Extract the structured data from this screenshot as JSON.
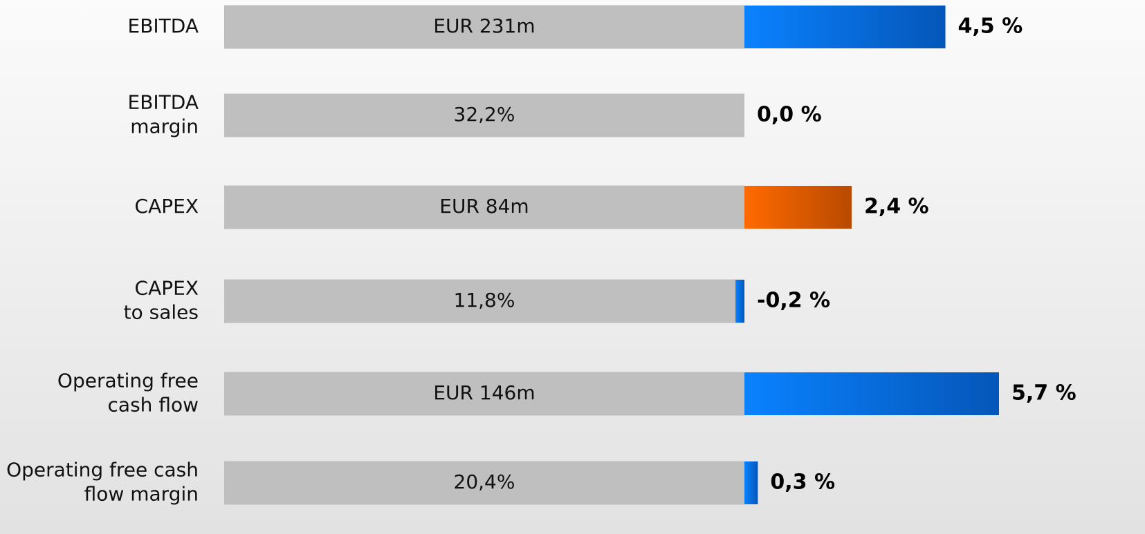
{
  "chart_data": {
    "type": "change-bar",
    "categories": [
      "EBITDA",
      "EBITDA\nmargin",
      "CAPEX",
      "CAPEX\nto sales",
      "Operating free\ncash flow",
      "Operating free cash\nflow margin"
    ],
    "base_labels": [
      "EUR 231m",
      "32,2%",
      "EUR 84m",
      "11,8%",
      "EUR 146m",
      "20,4%"
    ],
    "values": [
      4.5,
      0.0,
      2.4,
      -0.2,
      5.7,
      0.3
    ],
    "value_labels": [
      "4,5 %",
      "0,0 %",
      "2,4 %",
      "-0,2 %",
      "5,7 %",
      "0,3 %"
    ],
    "colors": [
      [
        "#0a82ff",
        "#0556b8"
      ],
      [
        "#0a82ff",
        "#0556b8"
      ],
      [
        "#ff6a00",
        "#b84a00"
      ],
      [
        "#0a82ff",
        "#0556b8"
      ],
      [
        "#0a82ff",
        "#0556b8"
      ],
      [
        "#0a82ff",
        "#0556b8"
      ]
    ],
    "base_color": "#bfbfbf"
  }
}
